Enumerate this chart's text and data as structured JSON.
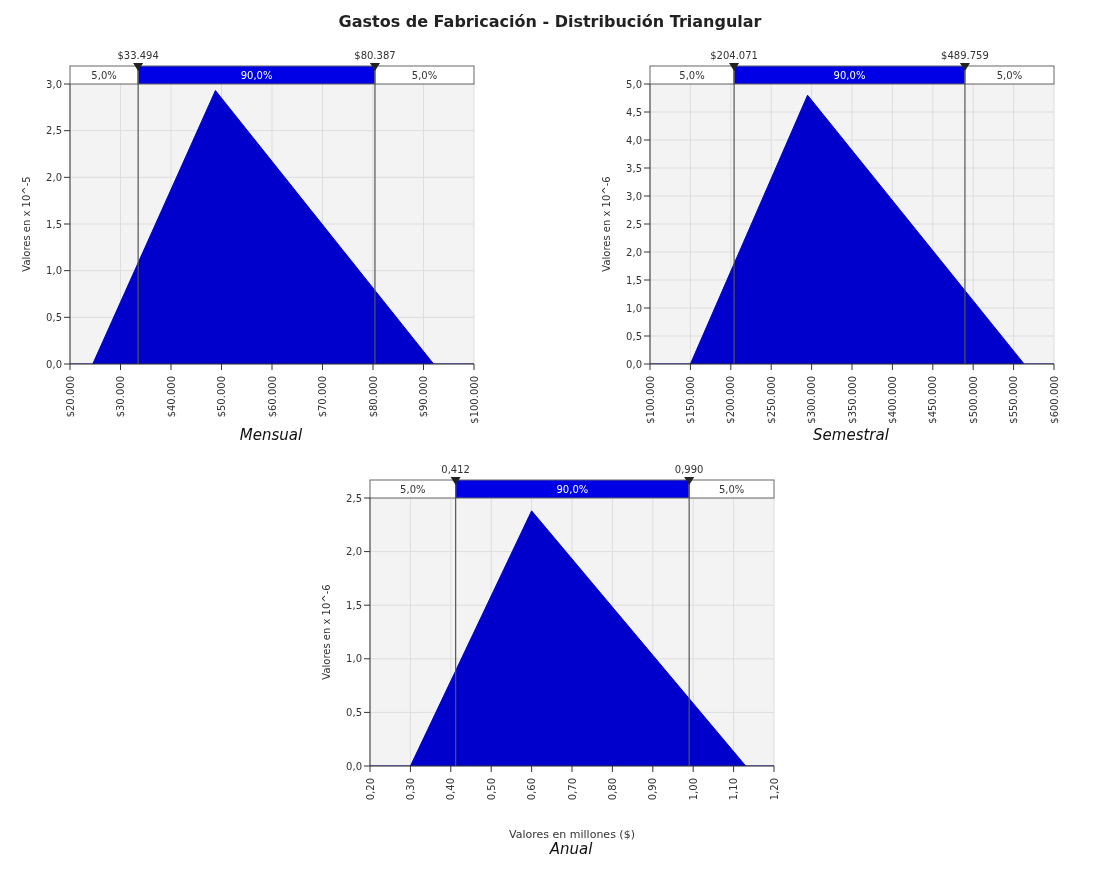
{
  "chart_data": [
    {
      "type": "area",
      "title": "Gastos de Fabricación - Distribución Triangular",
      "subtitle": "Mensual",
      "ylabel": "Valores en x 10^-5",
      "x": [
        20000,
        24500,
        48800,
        92000,
        100000
      ],
      "values": [
        0,
        0,
        2.93,
        0,
        0
      ],
      "color": "#0000cc",
      "xlim": [
        20000,
        100000
      ],
      "xticks": [
        {
          "value": 20000,
          "label": "$20.000"
        },
        {
          "value": 30000,
          "label": "$30.000"
        },
        {
          "value": 40000,
          "label": "$40.000"
        },
        {
          "value": 50000,
          "label": "$50.000"
        },
        {
          "value": 60000,
          "label": "$60.000"
        },
        {
          "value": 70000,
          "label": "$70.000"
        },
        {
          "value": 80000,
          "label": "$80.000"
        },
        {
          "value": 90000,
          "label": "$90.000"
        },
        {
          "value": 100000,
          "label": "$100.000"
        }
      ],
      "ylim": [
        0,
        3
      ],
      "yticks": [
        {
          "value": 0,
          "label": "0,0"
        },
        {
          "value": 0.5,
          "label": "0,5"
        },
        {
          "value": 1,
          "label": "1,0"
        },
        {
          "value": 1.5,
          "label": "1,5"
        },
        {
          "value": 2,
          "label": "2,0"
        },
        {
          "value": 2.5,
          "label": "2,5"
        },
        {
          "value": 3,
          "label": "3,0"
        }
      ],
      "ref_lines": [
        {
          "axis": "x",
          "value": 33494,
          "label": "$33.494",
          "color": "#555555"
        },
        {
          "axis": "x",
          "value": 80387,
          "label": "$80.387",
          "color": "#555555"
        }
      ],
      "annotations": [
        "5,0%",
        "90,0%",
        "5,0%"
      ],
      "grid": true,
      "legend": false
    },
    {
      "type": "area",
      "subtitle": "Semestral",
      "ylabel": "Valores en x 10^-6",
      "x": [
        100000,
        150000,
        295000,
        563000,
        600000
      ],
      "values": [
        0,
        0,
        4.8,
        0,
        0
      ],
      "color": "#0000cc",
      "xlim": [
        100000,
        600000
      ],
      "xticks": [
        {
          "value": 100000,
          "label": "$100.000"
        },
        {
          "value": 150000,
          "label": "$150.000"
        },
        {
          "value": 200000,
          "label": "$200.000"
        },
        {
          "value": 250000,
          "label": "$250.000"
        },
        {
          "value": 300000,
          "label": "$300.000"
        },
        {
          "value": 350000,
          "label": "$350.000"
        },
        {
          "value": 400000,
          "label": "$400.000"
        },
        {
          "value": 450000,
          "label": "$450.000"
        },
        {
          "value": 500000,
          "label": "$500.000"
        },
        {
          "value": 550000,
          "label": "$550.000"
        },
        {
          "value": 600000,
          "label": "$600.000"
        }
      ],
      "ylim": [
        0,
        5
      ],
      "yticks": [
        {
          "value": 0,
          "label": "0,0"
        },
        {
          "value": 0.5,
          "label": "0,5"
        },
        {
          "value": 1,
          "label": "1,0"
        },
        {
          "value": 1.5,
          "label": "1,5"
        },
        {
          "value": 2,
          "label": "2,0"
        },
        {
          "value": 2.5,
          "label": "2,5"
        },
        {
          "value": 3,
          "label": "3,0"
        },
        {
          "value": 3.5,
          "label": "3,5"
        },
        {
          "value": 4,
          "label": "4,0"
        },
        {
          "value": 4.5,
          "label": "4,5"
        },
        {
          "value": 5,
          "label": "5,0"
        }
      ],
      "ref_lines": [
        {
          "axis": "x",
          "value": 204071,
          "label": "$204.071",
          "color": "#555555"
        },
        {
          "axis": "x",
          "value": 489759,
          "label": "$489.759",
          "color": "#555555"
        }
      ],
      "annotations": [
        "5,0%",
        "90,0%",
        "5,0%"
      ],
      "grid": true,
      "legend": false
    },
    {
      "type": "area",
      "subtitle": "Anual",
      "ylabel": "Valores en x 10^-6",
      "xlabel": "Valores en millones ($)",
      "x": [
        0.2,
        0.3,
        0.6,
        1.13,
        1.2
      ],
      "values": [
        0,
        0,
        2.38,
        0,
        0
      ],
      "color": "#0000cc",
      "xlim": [
        0.2,
        1.2
      ],
      "xticks": [
        {
          "value": 0.2,
          "label": "0,20"
        },
        {
          "value": 0.3,
          "label": "0,30"
        },
        {
          "value": 0.4,
          "label": "0,40"
        },
        {
          "value": 0.5,
          "label": "0,50"
        },
        {
          "value": 0.6,
          "label": "0,60"
        },
        {
          "value": 0.7,
          "label": "0,70"
        },
        {
          "value": 0.8,
          "label": "0,80"
        },
        {
          "value": 0.9,
          "label": "0,90"
        },
        {
          "value": 1.0,
          "label": "1,00"
        },
        {
          "value": 1.1,
          "label": "1,10"
        },
        {
          "value": 1.2,
          "label": "1,20"
        }
      ],
      "ylim": [
        0,
        2.5
      ],
      "yticks": [
        {
          "value": 0,
          "label": "0,0"
        },
        {
          "value": 0.5,
          "label": "0,5"
        },
        {
          "value": 1,
          "label": "1,0"
        },
        {
          "value": 1.5,
          "label": "1,5"
        },
        {
          "value": 2,
          "label": "2,0"
        },
        {
          "value": 2.5,
          "label": "2,5"
        }
      ],
      "ref_lines": [
        {
          "axis": "x",
          "value": 0.412,
          "label": "0,412",
          "color": "#555555"
        },
        {
          "axis": "x",
          "value": 0.99,
          "label": "0,990",
          "color": "#555555"
        }
      ],
      "annotations": [
        "5,0%",
        "90,0%",
        "5,0%"
      ],
      "grid": true,
      "legend": false
    }
  ]
}
